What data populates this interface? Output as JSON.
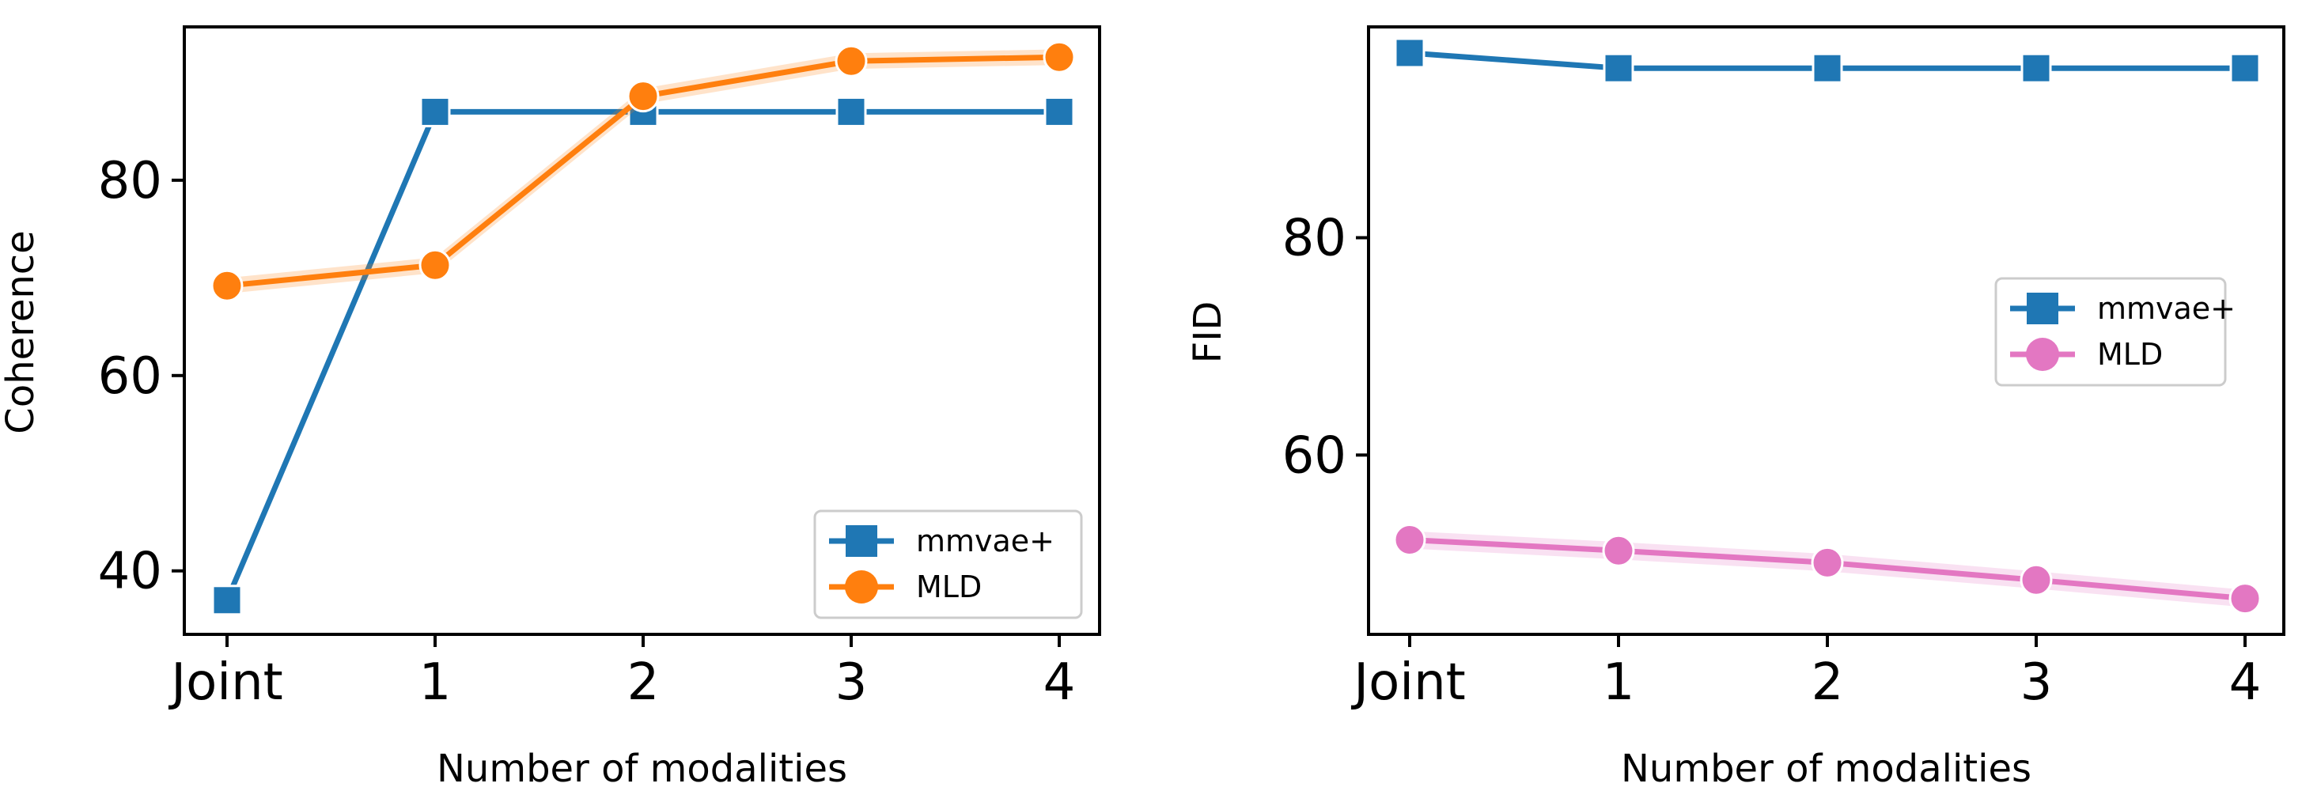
{
  "chart_data": [
    {
      "type": "line",
      "categories": [
        "Joint",
        "1",
        "2",
        "3",
        "4"
      ],
      "xlabel": "Number of modalities",
      "ylabel": "Coherence",
      "ylim": [
        33.5,
        95.7
      ],
      "yticks": [
        40,
        60,
        80
      ],
      "legend_position": "lower-right",
      "series": [
        {
          "name": "mmvae+",
          "values": [
            37.0,
            87.0,
            87.0,
            87.0,
            87.0
          ],
          "color": "#1f77b4",
          "marker": "square",
          "band": 0
        },
        {
          "name": "MLD",
          "values": [
            69.2,
            71.3,
            88.6,
            92.2,
            92.6
          ],
          "color": "#ff7f0e",
          "marker": "circle",
          "band": 0.8
        }
      ]
    },
    {
      "type": "line",
      "categories": [
        "Joint",
        "1",
        "2",
        "3",
        "4"
      ],
      "xlabel": "Number of modalities",
      "ylabel": "FID",
      "ylim": [
        43.5,
        99.4
      ],
      "yticks": [
        60,
        80
      ],
      "legend_position": "center-right",
      "series": [
        {
          "name": "mmvae+",
          "values": [
            97.0,
            95.6,
            95.6,
            95.6,
            95.6
          ],
          "color": "#1f77b4",
          "marker": "square",
          "band": 0
        },
        {
          "name": "MLD",
          "values": [
            52.2,
            51.2,
            50.1,
            48.5,
            46.8
          ],
          "color": "#e377c2",
          "marker": "circle",
          "band": 0.8
        }
      ]
    }
  ]
}
